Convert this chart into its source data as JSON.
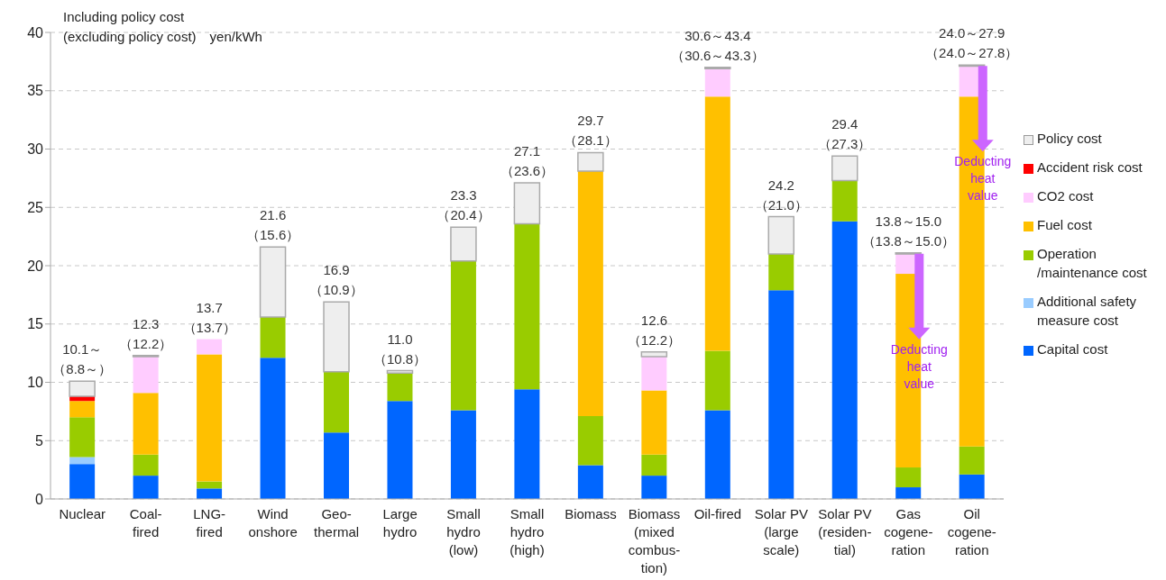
{
  "chart_data": {
    "type": "bar",
    "stacked": true,
    "title": "Including policy cost",
    "subtitle": "(excluding policy cost)　yen/kWh",
    "categories": [
      "Nuclear",
      "Coal-\nfired",
      "LNG-\nfired",
      "Wind\nonshore",
      "Geo-\nthermal",
      "Large\nhydro",
      "Small\nhydro\n(low)",
      "Small\nhydro\n(high)",
      "Biomass",
      "Biomass\n(mixed\ncombus-\ntion)",
      "Oil-fired",
      "Solar PV\n(large\nscale)",
      "Solar PV\n(residen-\ntial)",
      "Gas\ncogene-\nration",
      "Oil\ncogene-\nration"
    ],
    "series": [
      {
        "name": "Capital cost",
        "color": "#0066ff",
        "values": [
          3.0,
          2.0,
          0.9,
          12.1,
          5.7,
          8.4,
          7.6,
          9.4,
          2.9,
          2.0,
          7.6,
          17.9,
          23.8,
          1.0,
          2.1
        ]
      },
      {
        "name": "Additional safety\nmeasure cost",
        "color": "#99ccff",
        "values": [
          0.6,
          null,
          null,
          null,
          null,
          null,
          null,
          null,
          null,
          null,
          null,
          null,
          null,
          null,
          null
        ]
      },
      {
        "name": "Operation\n/maintenance cost",
        "color": "#99cc00",
        "values": [
          3.4,
          1.8,
          0.6,
          3.5,
          5.2,
          2.4,
          12.8,
          14.2,
          4.2,
          1.8,
          5.1,
          3.1,
          3.5,
          1.7,
          2.4
        ]
      },
      {
        "name": "Fuel cost",
        "color": "#ffc000",
        "values": [
          1.4,
          5.3,
          10.9,
          null,
          null,
          null,
          null,
          null,
          21.0,
          5.5,
          21.8,
          null,
          null,
          16.6,
          30.0
        ]
      },
      {
        "name": "CO2 cost",
        "color": "#ffccff",
        "values": [
          null,
          3.1,
          1.3,
          null,
          null,
          null,
          null,
          null,
          null,
          2.9,
          2.4,
          null,
          null,
          1.7,
          2.6
        ]
      },
      {
        "name": "Accident risk cost",
        "color": "#ff0000",
        "values": [
          0.4,
          null,
          null,
          null,
          null,
          null,
          null,
          null,
          null,
          null,
          null,
          null,
          null,
          null,
          null
        ]
      },
      {
        "name": "Policy cost",
        "color": "#eeeeee",
        "values": [
          1.3,
          0.1,
          null,
          6.0,
          6.0,
          0.2,
          2.9,
          3.5,
          1.6,
          0.4,
          0.1,
          3.2,
          2.1,
          0.1,
          0.1
        ]
      }
    ],
    "totals": [
      "10.1～（8.8～）",
      "12.3（12.2）",
      "13.7（13.7）",
      "21.6（15.6）",
      "16.9（10.9）",
      "11.0（10.8）",
      "23.3（20.4）",
      "27.1（23.6）",
      "29.7（28.1）",
      "12.6（12.2）",
      "30.6～43.4（30.6～43.3）",
      "24.2（21.0）",
      "29.4（27.3）",
      "13.8～15.0（13.8～15.0）",
      "24.0～27.9（24.0～27.8）"
    ],
    "annotations": [
      "Deducting\nheat\nvalue",
      "Deducting\nheat\nvalue"
    ],
    "ylim": [
      0,
      40
    ],
    "yticks": [
      0,
      5,
      10,
      15,
      20,
      25,
      30,
      35,
      40
    ],
    "grid": "y",
    "legend": "right"
  }
}
